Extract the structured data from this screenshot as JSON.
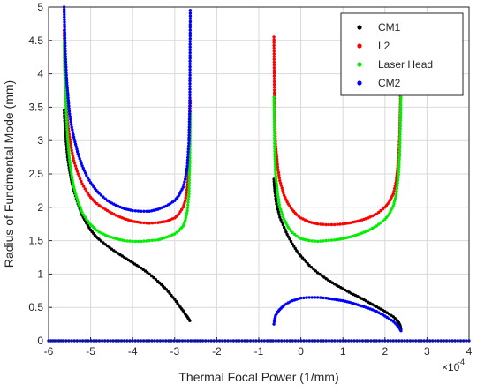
{
  "chart_data": {
    "type": "scatter",
    "title": "",
    "xlabel": "Thermal Focal Power (1/mm)",
    "ylabel": "Radius of Fundmental Mode (mm)",
    "x_exponent_label": "×10",
    "x_exponent_power": "-4",
    "xlim": [
      -6,
      4
    ],
    "ylim": [
      0,
      5
    ],
    "xticks": [
      -6,
      -5,
      -4,
      -3,
      -2,
      -1,
      0,
      1,
      2,
      3,
      4
    ],
    "yticks": [
      0,
      0.5,
      1,
      1.5,
      2,
      2.5,
      3,
      3.5,
      4,
      4.5,
      5
    ],
    "grid": true,
    "legend_position": "top-right",
    "series": [
      {
        "name": "CM1",
        "color": "#000000",
        "segments": [
          {
            "x": [
              -5.63,
              -5.6,
              -5.55,
              -5.5,
              -5.45,
              -5.4,
              -5.3,
              -5.2,
              -5.1,
              -5.0,
              -4.9,
              -4.8,
              -4.6,
              -4.4,
              -4.2,
              -4.0,
              -3.8,
              -3.6,
              -3.4,
              -3.2,
              -3.0,
              -2.9,
              -2.8,
              -2.75,
              -2.7,
              -2.66,
              -2.64
            ],
            "y": [
              3.45,
              3.1,
              2.75,
              2.55,
              2.38,
              2.25,
              2.05,
              1.88,
              1.76,
              1.66,
              1.58,
              1.52,
              1.42,
              1.33,
              1.25,
              1.17,
              1.09,
              1.0,
              0.89,
              0.77,
              0.62,
              0.53,
              0.45,
              0.4,
              0.36,
              0.32,
              0.3
            ]
          },
          {
            "x": [
              -0.64,
              -0.62,
              -0.58,
              -0.5,
              -0.4,
              -0.3,
              -0.2,
              -0.1,
              0.0,
              0.2,
              0.4,
              0.6,
              0.8,
              1.0,
              1.2,
              1.4,
              1.6,
              1.8,
              2.0,
              2.1,
              2.2,
              2.28,
              2.33,
              2.36,
              2.38
            ],
            "y": [
              2.42,
              2.25,
              2.05,
              1.85,
              1.7,
              1.56,
              1.45,
              1.35,
              1.27,
              1.13,
              1.02,
              0.93,
              0.85,
              0.78,
              0.71,
              0.65,
              0.58,
              0.51,
              0.44,
              0.4,
              0.36,
              0.31,
              0.27,
              0.23,
              0.18
            ]
          }
        ]
      },
      {
        "name": "L2",
        "color": "#ff0000",
        "segments": [
          {
            "x": [
              -5.63,
              -5.62,
              -5.6,
              -5.55,
              -5.5,
              -5.45,
              -5.4,
              -5.3,
              -5.2,
              -5.1,
              -5.0,
              -4.9,
              -4.8,
              -4.6,
              -4.4,
              -4.2,
              -4.0,
              -3.8,
              -3.6,
              -3.4,
              -3.2,
              -3.0,
              -2.9,
              -2.8,
              -2.75,
              -2.7,
              -2.66,
              -2.64,
              -2.63
            ],
            "y": [
              4.65,
              4.2,
              3.7,
              3.3,
              3.05,
              2.85,
              2.7,
              2.5,
              2.35,
              2.24,
              2.15,
              2.08,
              2.03,
              1.95,
              1.88,
              1.83,
              1.79,
              1.77,
              1.76,
              1.77,
              1.79,
              1.84,
              1.9,
              2.0,
              2.1,
              2.3,
              2.6,
              3.1,
              3.6
            ]
          },
          {
            "x": [
              -0.64,
              -0.63,
              -0.62,
              -0.6,
              -0.55,
              -0.5,
              -0.4,
              -0.3,
              -0.2,
              -0.1,
              0.0,
              0.2,
              0.4,
              0.6,
              0.8,
              1.0,
              1.2,
              1.4,
              1.6,
              1.8,
              2.0,
              2.1,
              2.2,
              2.27,
              2.32,
              2.35,
              2.37,
              2.38
            ],
            "y": [
              4.55,
              3.8,
              3.3,
              2.95,
              2.6,
              2.4,
              2.18,
              2.05,
              1.96,
              1.89,
              1.84,
              1.78,
              1.75,
              1.74,
              1.74,
              1.75,
              1.77,
              1.8,
              1.84,
              1.9,
              2.0,
              2.08,
              2.2,
              2.4,
              2.7,
              3.1,
              3.7,
              4.85
            ]
          }
        ]
      },
      {
        "name": "Laser Head",
        "color": "#00ee00",
        "segments": [
          {
            "x": [
              -5.63,
              -5.61,
              -5.58,
              -5.55,
              -5.5,
              -5.45,
              -5.4,
              -5.3,
              -5.2,
              -5.1,
              -5.0,
              -4.9,
              -4.8,
              -4.6,
              -4.4,
              -4.2,
              -4.0,
              -3.8,
              -3.6,
              -3.4,
              -3.2,
              -3.0,
              -2.9,
              -2.8,
              -2.75,
              -2.7,
              -2.66,
              -2.64,
              -2.63
            ],
            "y": [
              4.5,
              3.9,
              3.4,
              3.05,
              2.7,
              2.47,
              2.3,
              2.08,
              1.92,
              1.82,
              1.74,
              1.68,
              1.63,
              1.57,
              1.53,
              1.5,
              1.49,
              1.49,
              1.5,
              1.51,
              1.55,
              1.6,
              1.65,
              1.72,
              1.8,
              1.95,
              2.2,
              2.7,
              3.4
            ]
          },
          {
            "x": [
              -0.64,
              -0.63,
              -0.62,
              -0.6,
              -0.55,
              -0.5,
              -0.4,
              -0.3,
              -0.2,
              -0.1,
              0.0,
              0.2,
              0.4,
              0.6,
              0.8,
              1.0,
              1.2,
              1.4,
              1.6,
              1.8,
              2.0,
              2.1,
              2.2,
              2.27,
              2.32,
              2.35,
              2.37,
              2.38
            ],
            "y": [
              3.65,
              3.2,
              2.8,
              2.5,
              2.2,
              2.0,
              1.82,
              1.7,
              1.62,
              1.57,
              1.53,
              1.5,
              1.49,
              1.5,
              1.51,
              1.53,
              1.56,
              1.6,
              1.65,
              1.72,
              1.82,
              1.9,
              2.02,
              2.2,
              2.45,
              2.8,
              3.3,
              3.65
            ]
          }
        ]
      },
      {
        "name": "CM2",
        "color": "#0000ff",
        "segments": [
          {
            "x": [
              -5.63,
              -5.62,
              -5.6,
              -5.57,
              -5.53,
              -5.5,
              -5.45,
              -5.4,
              -5.3,
              -5.2,
              -5.1,
              -5.0,
              -4.9,
              -4.8,
              -4.6,
              -4.4,
              -4.2,
              -4.0,
              -3.8,
              -3.6,
              -3.4,
              -3.2,
              -3.0,
              -2.9,
              -2.8,
              -2.75,
              -2.7,
              -2.66,
              -2.64,
              -2.63
            ],
            "y": [
              5.0,
              4.7,
              4.3,
              3.9,
              3.6,
              3.4,
              3.2,
              3.05,
              2.8,
              2.62,
              2.48,
              2.37,
              2.28,
              2.21,
              2.1,
              2.03,
              1.98,
              1.95,
              1.94,
              1.94,
              1.97,
              2.02,
              2.1,
              2.18,
              2.3,
              2.42,
              2.62,
              3.0,
              3.6,
              4.95
            ]
          },
          {
            "x": [
              -0.64,
              -0.62,
              -0.6,
              -0.55,
              -0.5,
              -0.4,
              -0.3,
              -0.2,
              -0.1,
              0.0,
              0.2,
              0.4,
              0.6,
              0.8,
              1.0,
              1.2,
              1.4,
              1.6,
              1.8,
              2.0,
              2.1,
              2.2,
              2.28,
              2.33,
              2.36,
              2.38
            ],
            "y": [
              0.25,
              0.33,
              0.38,
              0.43,
              0.47,
              0.53,
              0.57,
              0.6,
              0.62,
              0.64,
              0.65,
              0.65,
              0.64,
              0.62,
              0.6,
              0.57,
              0.53,
              0.49,
              0.44,
              0.37,
              0.33,
              0.29,
              0.24,
              0.2,
              0.17,
              0.15
            ]
          },
          {
            "x": [
              -6.0,
              -5.9,
              -5.8,
              -5.7,
              -5.65,
              -2.62,
              -2.4,
              -2.2,
              -2.0,
              -1.8,
              -1.6,
              -1.4,
              -1.2,
              -1.0,
              -0.8,
              -0.66,
              2.4,
              2.6,
              2.8,
              3.0,
              3.2,
              3.4,
              3.6,
              3.8,
              4.0
            ],
            "y": [
              0,
              0,
              0,
              0,
              0,
              0,
              0,
              0,
              0,
              0,
              0,
              0,
              0,
              0,
              0,
              0,
              0,
              0,
              0,
              0,
              0,
              0,
              0,
              0,
              0
            ]
          }
        ]
      }
    ]
  }
}
